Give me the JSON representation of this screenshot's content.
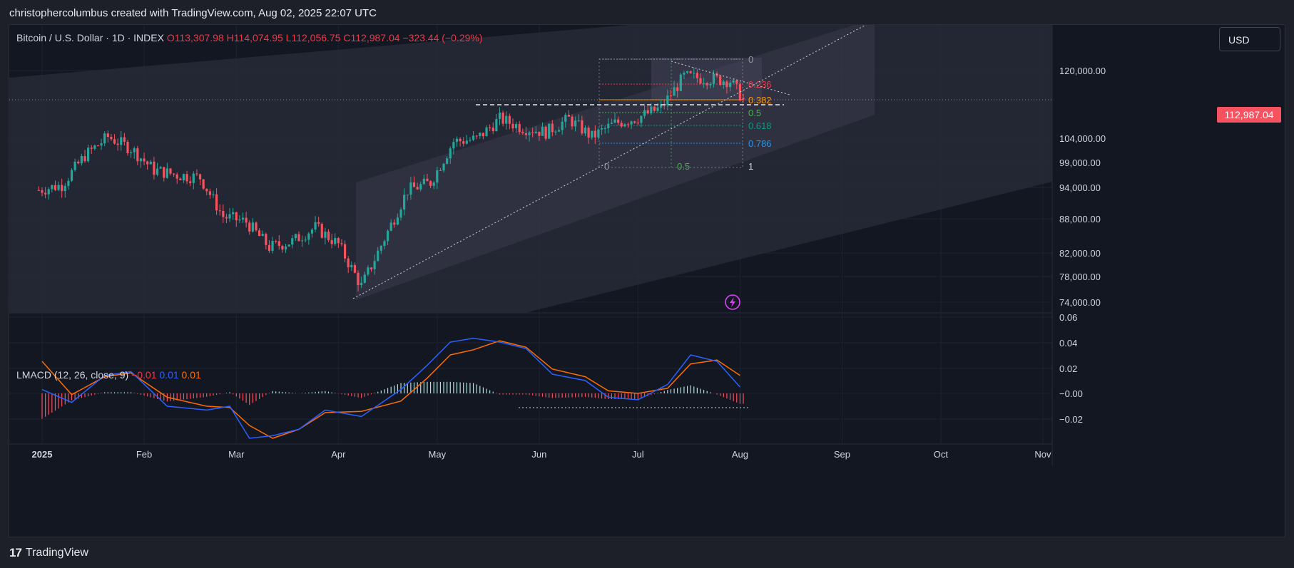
{
  "header": {
    "title": "christophercolumbus created with TradingView.com, Aug 02, 2025 22:07 UTC"
  },
  "footer": {
    "brand": "TradingView"
  },
  "currency_button": "USD",
  "legend": {
    "symbol": "Bitcoin / U.S. Dollar · 1D · INDEX",
    "open": "O113,307.98",
    "high": "H114,074.95",
    "low": "L112,056.75",
    "close": "C112,987.04",
    "change": "−323.44 (−0.29%)"
  },
  "macd_legend": {
    "label": "LMACD (12, 26, close, 9)",
    "hist": "−0.01",
    "macd": "0.01",
    "signal": "0.01"
  },
  "last_price": "112,987.04",
  "fib_retracement": {
    "labels": [
      "0",
      "0.236",
      "0.382",
      "0.5",
      "0.618",
      "0.786"
    ],
    "time_labels": [
      "0",
      "0.5",
      "1"
    ],
    "colors": [
      "#9598a1",
      "#f23645",
      "#ff9800",
      "#4caf50",
      "#089981",
      "#2196f3"
    ]
  },
  "colors": {
    "up": "#26a69a",
    "down": "#f7525f",
    "macd": "#2962ff",
    "signal": "#ff6d00",
    "background": "#131722"
  },
  "chart_data": [
    {
      "type": "candlestick",
      "title": "Bitcoin / U.S. Dollar · 1D · INDEX",
      "y_scale": "log",
      "price_ticks": [
        "120,000.00",
        "104,000.00",
        "99,000.00",
        "94,000.00",
        "88,000.00",
        "82,000.00",
        "78,000.00",
        "74,000.00"
      ],
      "x_ticks": [
        "2025",
        "Feb",
        "Mar",
        "Apr",
        "May",
        "Jun",
        "Jul",
        "Aug",
        "Sep",
        "Oct",
        "Nov"
      ],
      "ylim": [
        72500,
        127000
      ],
      "series": [
        {
          "name": "BTCUSD close (approx.)",
          "x": [
            "2024-12-31",
            "2025-01-07",
            "2025-01-14",
            "2025-01-21",
            "2025-01-28",
            "2025-02-04",
            "2025-02-11",
            "2025-02-18",
            "2025-02-25",
            "2025-03-04",
            "2025-03-11",
            "2025-03-18",
            "2025-03-25",
            "2025-04-01",
            "2025-04-08",
            "2025-04-15",
            "2025-04-22",
            "2025-04-29",
            "2025-05-06",
            "2025-05-13",
            "2025-05-20",
            "2025-05-27",
            "2025-06-03",
            "2025-06-10",
            "2025-06-17",
            "2025-06-24",
            "2025-07-01",
            "2025-07-08",
            "2025-07-15",
            "2025-07-22",
            "2025-07-29",
            "2025-08-02"
          ],
          "values": [
            93500,
            94500,
            100500,
            104500,
            102000,
            97500,
            96500,
            96000,
            88500,
            87500,
            83000,
            84000,
            86500,
            83500,
            76500,
            84500,
            93500,
            95000,
            103500,
            104000,
            108500,
            106500,
            105500,
            108500,
            104500,
            107500,
            108800,
            111000,
            118500,
            118000,
            117500,
            112987
          ]
        }
      ]
    },
    {
      "type": "line",
      "title": "LMACD (12, 26, close, 9)",
      "y_ticks": [
        "0.06",
        "0.04",
        "0.02",
        "−0.00",
        "−0.02"
      ],
      "ylim": [
        -0.04,
        0.06
      ],
      "series": [
        {
          "name": "MACD",
          "x": [
            "2025-01-01",
            "2025-01-10",
            "2025-01-20",
            "2025-01-28",
            "2025-02-08",
            "2025-02-20",
            "2025-02-27",
            "2025-03-05",
            "2025-03-12",
            "2025-03-20",
            "2025-03-28",
            "2025-04-08",
            "2025-04-20",
            "2025-04-28",
            "2025-05-05",
            "2025-05-12",
            "2025-05-20",
            "2025-05-28",
            "2025-06-05",
            "2025-06-15",
            "2025-06-22",
            "2025-07-01",
            "2025-07-10",
            "2025-07-17",
            "2025-07-25",
            "2025-08-01"
          ],
          "values": [
            0.003,
            -0.007,
            0.014,
            0.017,
            -0.01,
            -0.013,
            -0.01,
            -0.035,
            -0.033,
            -0.028,
            -0.013,
            -0.018,
            0.003,
            0.022,
            0.04,
            0.043,
            0.04,
            0.035,
            0.015,
            0.01,
            -0.003,
            -0.005,
            0.007,
            0.03,
            0.025,
            0.005
          ]
        },
        {
          "name": "Signal",
          "x": [
            "2025-01-01",
            "2025-01-10",
            "2025-01-20",
            "2025-01-28",
            "2025-02-08",
            "2025-02-20",
            "2025-02-27",
            "2025-03-05",
            "2025-03-12",
            "2025-03-20",
            "2025-03-28",
            "2025-04-08",
            "2025-04-20",
            "2025-04-28",
            "2025-05-05",
            "2025-05-12",
            "2025-05-20",
            "2025-05-28",
            "2025-06-05",
            "2025-06-15",
            "2025-06-22",
            "2025-07-01",
            "2025-07-10",
            "2025-07-17",
            "2025-07-25",
            "2025-08-01"
          ],
          "values": [
            0.025,
            -0.001,
            0.013,
            0.016,
            -0.003,
            -0.01,
            -0.011,
            -0.025,
            -0.035,
            -0.028,
            -0.015,
            -0.014,
            -0.006,
            0.012,
            0.03,
            0.034,
            0.041,
            0.036,
            0.019,
            0.013,
            0.002,
            0.0,
            0.004,
            0.023,
            0.026,
            0.014
          ]
        }
      ]
    }
  ]
}
